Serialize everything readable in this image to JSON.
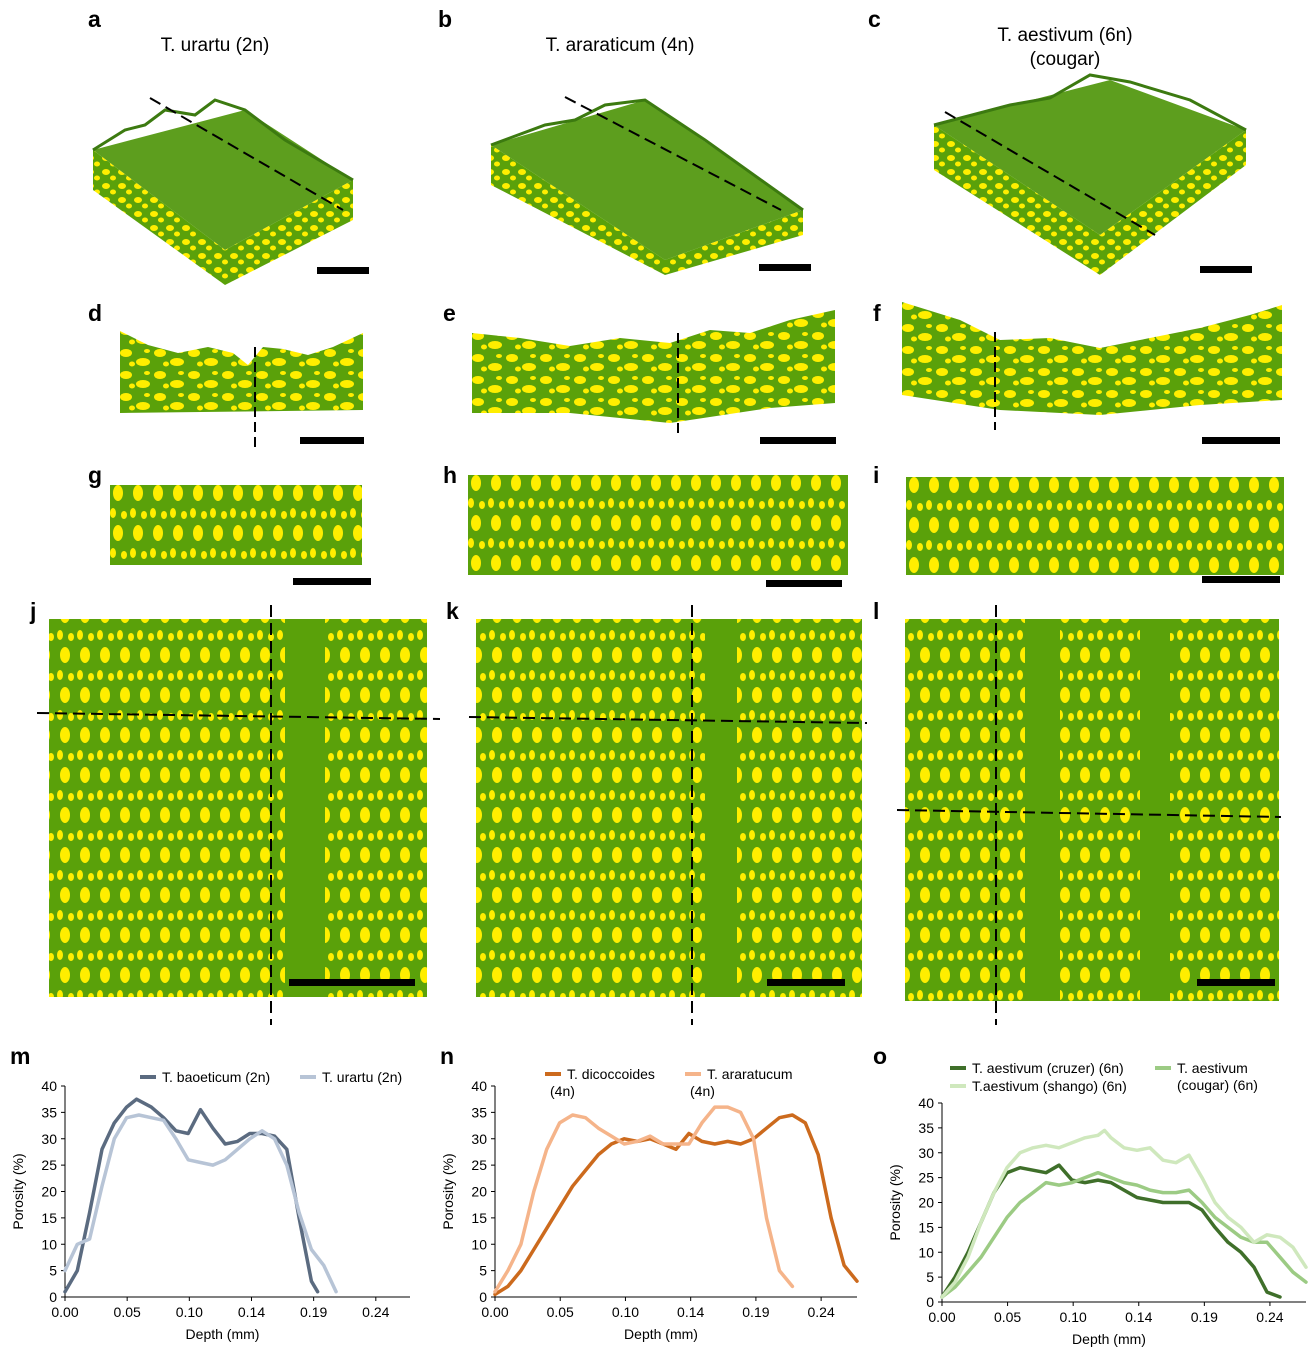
{
  "panels": {
    "a": "a",
    "b": "b",
    "c": "c",
    "d": "d",
    "e": "e",
    "f": "f",
    "g": "g",
    "h": "h",
    "i": "i",
    "j": "j",
    "k": "k",
    "l": "l",
    "m": "m",
    "n": "n",
    "o": "o"
  },
  "titles": {
    "a": "T. urartu (2n)",
    "b": "T. araraticum (4n)",
    "c_line1": "T. aestivum (6n)",
    "c_line2": "(cougar)"
  },
  "colors": {
    "tissue_green": "#5aa10a",
    "pore_yellow": "#ffee00",
    "surface_green": "#4f9a14"
  },
  "chart_data": [
    {
      "type": "line",
      "panel": "m",
      "xlabel": "Depth (mm)",
      "ylabel": "Porosity (%)",
      "xticks": [
        "0.00",
        "0.05",
        "0.10",
        "0.14",
        "0.19",
        "0.24"
      ],
      "yticks": [
        "0",
        "5",
        "10",
        "15",
        "20",
        "25",
        "30",
        "35",
        "40"
      ],
      "xlim": [
        0,
        0.28
      ],
      "ylim": [
        0,
        40
      ],
      "series": [
        {
          "name": "T. baoeticum (2n)",
          "color": "#5b6b80",
          "x": [
            0.0,
            0.01,
            0.02,
            0.03,
            0.04,
            0.05,
            0.058,
            0.07,
            0.08,
            0.09,
            0.1,
            0.11,
            0.12,
            0.13,
            0.14,
            0.15,
            0.16,
            0.17,
            0.18,
            0.19,
            0.2,
            0.205
          ],
          "y": [
            1,
            5,
            16,
            28,
            33,
            36,
            37.5,
            36,
            34,
            31.5,
            31,
            35.5,
            32,
            29,
            29.5,
            31,
            31,
            30.5,
            28,
            15,
            3,
            1
          ]
        },
        {
          "name": "T. urartu (2n)",
          "color": "#b7c4d6",
          "x": [
            0.0,
            0.01,
            0.02,
            0.03,
            0.04,
            0.05,
            0.06,
            0.07,
            0.08,
            0.09,
            0.1,
            0.11,
            0.12,
            0.13,
            0.14,
            0.15,
            0.16,
            0.17,
            0.18,
            0.19,
            0.2,
            0.21,
            0.22
          ],
          "y": [
            5,
            10,
            11,
            21,
            30,
            34,
            34.5,
            34,
            33.5,
            30,
            26,
            25.5,
            25,
            26,
            28,
            30,
            31.5,
            30,
            25,
            16,
            9,
            6,
            1
          ]
        }
      ]
    },
    {
      "type": "line",
      "panel": "n",
      "xlabel": "Depth (mm)",
      "ylabel": "Porosity (%)",
      "xticks": [
        "0.00",
        "0.05",
        "0.10",
        "0.14",
        "0.19",
        "0.24"
      ],
      "yticks": [
        "0",
        "5",
        "10",
        "15",
        "20",
        "25",
        "30",
        "35",
        "40"
      ],
      "xlim": [
        0,
        0.28
      ],
      "ylim": [
        0,
        40
      ],
      "series": [
        {
          "name_line1": "T. dicoccoides",
          "name_line2": "(4n)",
          "color": "#cc6a1d",
          "x": [
            0.0,
            0.01,
            0.02,
            0.03,
            0.04,
            0.05,
            0.06,
            0.07,
            0.08,
            0.09,
            0.1,
            0.11,
            0.12,
            0.13,
            0.14,
            0.15,
            0.16,
            0.17,
            0.18,
            0.19,
            0.2,
            0.21,
            0.22,
            0.23,
            0.24,
            0.25,
            0.26,
            0.27,
            0.28
          ],
          "y": [
            0.5,
            2,
            5,
            9,
            13,
            17,
            21,
            24,
            27,
            29,
            30,
            29.5,
            30,
            29,
            28,
            31,
            29.5,
            29,
            29.5,
            29,
            30,
            32,
            34,
            34.5,
            33,
            27,
            15,
            6,
            3
          ]
        },
        {
          "name_line1": "T. araratucum",
          "name_line2": "(4n)",
          "color": "#f5b48a",
          "x": [
            0.0,
            0.01,
            0.02,
            0.03,
            0.04,
            0.05,
            0.06,
            0.07,
            0.08,
            0.09,
            0.1,
            0.11,
            0.12,
            0.13,
            0.14,
            0.15,
            0.16,
            0.17,
            0.18,
            0.19,
            0.2,
            0.21,
            0.22,
            0.23
          ],
          "y": [
            1,
            5,
            10,
            20,
            28,
            33,
            34.5,
            34,
            32,
            30.5,
            29,
            29.5,
            30.5,
            29,
            29,
            29,
            33,
            36,
            36,
            35,
            30,
            15,
            5,
            2
          ]
        }
      ]
    },
    {
      "type": "line",
      "panel": "o",
      "xlabel": "Depth (mm)",
      "ylabel": "Porosity (%)",
      "xticks": [
        "0.00",
        "0.05",
        "0.10",
        "0.14",
        "0.19",
        "0.24"
      ],
      "yticks": [
        "0",
        "5",
        "10",
        "15",
        "20",
        "25",
        "30",
        "35",
        "40"
      ],
      "xlim": [
        0,
        0.28
      ],
      "ylim": [
        0,
        40
      ],
      "series": [
        {
          "name": "T. aestivum (cruzer) (6n)",
          "color": "#3f6f2a",
          "x": [
            0.0,
            0.01,
            0.02,
            0.03,
            0.04,
            0.05,
            0.06,
            0.07,
            0.08,
            0.09,
            0.1,
            0.11,
            0.12,
            0.13,
            0.14,
            0.15,
            0.16,
            0.17,
            0.18,
            0.19,
            0.2,
            0.21,
            0.22,
            0.23,
            0.24,
            0.25,
            0.26
          ],
          "y": [
            1,
            5,
            10,
            16,
            22,
            26,
            27,
            26.5,
            26,
            27.5,
            24.5,
            24,
            24.5,
            24,
            22.5,
            21,
            20.5,
            20,
            20,
            20,
            18.5,
            15,
            12,
            10,
            7,
            2,
            1
          ]
        },
        {
          "name_line1": "T. aestivum",
          "name_line2": "(cougar) (6n)",
          "color": "#9ccb84",
          "x": [
            0.0,
            0.01,
            0.02,
            0.03,
            0.04,
            0.05,
            0.06,
            0.07,
            0.08,
            0.09,
            0.1,
            0.11,
            0.12,
            0.13,
            0.14,
            0.15,
            0.16,
            0.17,
            0.18,
            0.19,
            0.2,
            0.21,
            0.22,
            0.23,
            0.24,
            0.25,
            0.26,
            0.27,
            0.28
          ],
          "y": [
            1,
            3,
            6,
            9,
            13,
            17,
            20,
            22,
            24,
            23.5,
            24,
            25,
            26,
            25,
            24,
            23.5,
            22.5,
            22,
            22,
            22.5,
            20,
            17,
            15,
            13,
            12,
            12,
            9,
            6,
            4
          ]
        },
        {
          "name": "T.aestivum (shango) (6n)",
          "color": "#cfe8bd",
          "x": [
            0.0,
            0.01,
            0.02,
            0.03,
            0.04,
            0.05,
            0.06,
            0.07,
            0.08,
            0.09,
            0.1,
            0.11,
            0.12,
            0.125,
            0.13,
            0.14,
            0.15,
            0.16,
            0.17,
            0.18,
            0.19,
            0.2,
            0.21,
            0.22,
            0.23,
            0.24,
            0.25,
            0.26,
            0.27,
            0.28
          ],
          "y": [
            1,
            4,
            9,
            16,
            22,
            27,
            30,
            31,
            31.5,
            31,
            32,
            33,
            33.5,
            34.5,
            33,
            31,
            30.5,
            31,
            28.5,
            28,
            29.5,
            25,
            20,
            17,
            15,
            12,
            13.5,
            13,
            11,
            7
          ]
        }
      ]
    }
  ]
}
